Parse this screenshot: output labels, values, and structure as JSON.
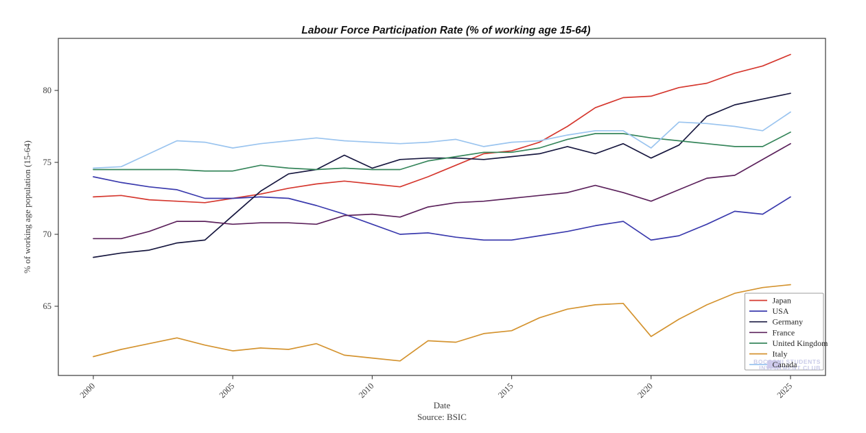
{
  "figure": {
    "title": "Labour Force Participation Rate (% of working age 15-64)",
    "x_axis_label": "Date",
    "y_axis_label": "% of working age population (15-64)",
    "source_text": "Source: BSIC",
    "watermark": {
      "line1": "BOCCONI STUDENTS",
      "line2": "INVESTMENT CLUB",
      "text_color": "#c9cbe8",
      "logo_color": "#cfc9ec"
    }
  },
  "chart_data": {
    "type": "line",
    "title": "Labour Force Participation Rate (% of working age 15-64)",
    "xlabel": "Date",
    "ylabel": "% of working age population (15-64)",
    "source": "Source: BSIC",
    "grid": false,
    "legend_position": "lower right",
    "xlim": [
      1998.7,
      2026.3
    ],
    "ylim": [
      60.2,
      83.6
    ],
    "xticks": [
      2000,
      2005,
      2010,
      2015,
      2020,
      2025
    ],
    "yticks": [
      65,
      70,
      75,
      80
    ],
    "x": [
      2000,
      2001,
      2002,
      2003,
      2004,
      2005,
      2006,
      2007,
      2008,
      2009,
      2010,
      2011,
      2012,
      2013,
      2014,
      2015,
      2016,
      2017,
      2018,
      2019,
      2020,
      2021,
      2022,
      2023,
      2024,
      2025
    ],
    "series": [
      {
        "name": "Japan",
        "color": "#d5372e",
        "values": [
          72.6,
          72.7,
          72.4,
          72.3,
          72.2,
          72.5,
          72.8,
          73.2,
          73.5,
          73.7,
          73.5,
          73.3,
          74.0,
          74.8,
          75.6,
          75.8,
          76.4,
          77.5,
          78.8,
          79.5,
          79.6,
          80.2,
          80.5,
          81.2,
          81.7,
          82.5
        ]
      },
      {
        "name": "USA",
        "color": "#3a3aad",
        "values": [
          74.0,
          73.6,
          73.3,
          73.1,
          72.5,
          72.5,
          72.6,
          72.5,
          72.0,
          71.4,
          70.7,
          70.0,
          70.1,
          69.8,
          69.6,
          69.6,
          69.9,
          70.2,
          70.6,
          70.9,
          69.6,
          69.9,
          70.7,
          71.6,
          71.4,
          72.6
        ]
      },
      {
        "name": "Germany",
        "color": "#17173f",
        "values": [
          68.4,
          68.7,
          68.9,
          69.4,
          69.6,
          71.3,
          73.0,
          74.2,
          74.5,
          75.5,
          74.6,
          75.2,
          75.3,
          75.3,
          75.2,
          75.4,
          75.6,
          76.1,
          75.6,
          76.3,
          75.3,
          76.2,
          78.2,
          79.0,
          79.4,
          79.8
        ]
      },
      {
        "name": "France",
        "color": "#5b215b",
        "values": [
          69.7,
          69.7,
          70.2,
          70.9,
          70.9,
          70.7,
          70.8,
          70.8,
          70.7,
          71.3,
          71.4,
          71.2,
          71.9,
          72.2,
          72.3,
          72.5,
          72.7,
          72.9,
          73.4,
          72.9,
          72.3,
          73.1,
          73.9,
          74.1,
          75.2,
          76.3
        ]
      },
      {
        "name": "United Kingdom",
        "color": "#35855a",
        "values": [
          74.5,
          74.5,
          74.5,
          74.5,
          74.4,
          74.4,
          74.8,
          74.6,
          74.5,
          74.6,
          74.5,
          74.5,
          75.1,
          75.4,
          75.7,
          75.7,
          76.0,
          76.6,
          77.0,
          77.0,
          76.7,
          76.5,
          76.3,
          76.1,
          76.1,
          77.1
        ]
      },
      {
        "name": "Italy",
        "color": "#d4932f",
        "values": [
          61.5,
          62.0,
          62.4,
          62.8,
          62.3,
          61.9,
          62.1,
          62.0,
          62.4,
          61.6,
          61.4,
          61.2,
          62.6,
          62.5,
          63.1,
          63.3,
          64.2,
          64.8,
          65.1,
          65.2,
          62.9,
          64.1,
          65.1,
          65.9,
          66.3,
          66.5
        ]
      },
      {
        "name": "Canada",
        "color": "#9ac4ef",
        "values": [
          74.6,
          74.7,
          75.6,
          76.5,
          76.4,
          76.0,
          76.3,
          76.5,
          76.7,
          76.5,
          76.4,
          76.3,
          76.4,
          76.6,
          76.1,
          76.4,
          76.5,
          76.9,
          77.2,
          77.2,
          76.0,
          77.8,
          77.7,
          77.5,
          77.2,
          78.5
        ]
      }
    ]
  }
}
